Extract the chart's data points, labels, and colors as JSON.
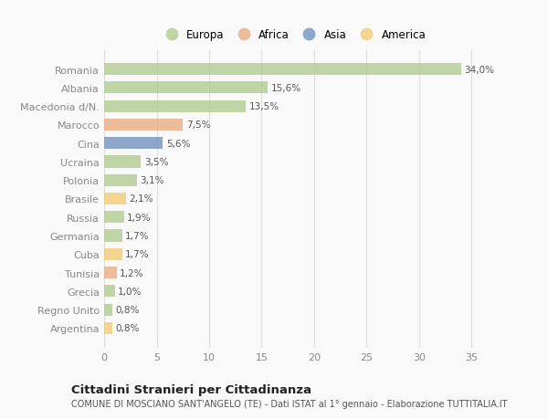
{
  "countries": [
    "Romania",
    "Albania",
    "Macedonia d/N.",
    "Marocco",
    "Cina",
    "Ucraina",
    "Polonia",
    "Brasile",
    "Russia",
    "Germania",
    "Cuba",
    "Tunisia",
    "Grecia",
    "Regno Unito",
    "Argentina"
  ],
  "values": [
    34.0,
    15.6,
    13.5,
    7.5,
    5.6,
    3.5,
    3.1,
    2.1,
    1.9,
    1.7,
    1.7,
    1.2,
    1.0,
    0.8,
    0.8
  ],
  "continents": [
    "Europa",
    "Europa",
    "Europa",
    "Africa",
    "Asia",
    "Europa",
    "Europa",
    "America",
    "Europa",
    "Europa",
    "America",
    "Africa",
    "Europa",
    "Europa",
    "America"
  ],
  "colors": {
    "Europa": "#aec98a",
    "Africa": "#e8a87c",
    "Asia": "#6b8cba",
    "America": "#f0c96e"
  },
  "legend_order": [
    "Europa",
    "Africa",
    "Asia",
    "America"
  ],
  "title": "Cittadini Stranieri per Cittadinanza",
  "subtitle": "COMUNE DI MOSCIANO SANT'ANGELO (TE) - Dati ISTAT al 1° gennaio - Elaborazione TUTTITALIA.IT",
  "xlim": [
    0,
    36
  ],
  "xticks": [
    0,
    5,
    10,
    15,
    20,
    25,
    30,
    35
  ],
  "bg_color": "#f9f9f9",
  "bar_alpha": 0.75,
  "bar_height": 0.65
}
